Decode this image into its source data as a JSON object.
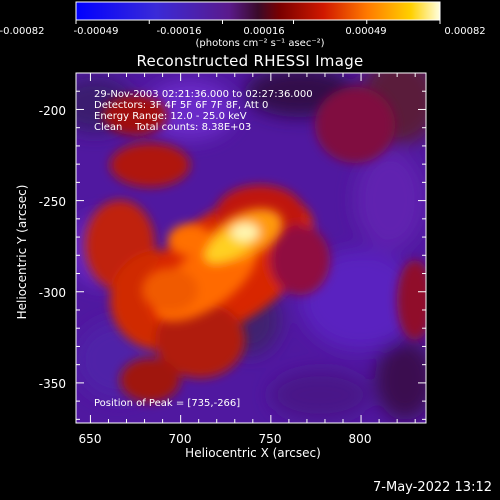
{
  "colorbar": {
    "tick_labels": [
      "-0.00082",
      "-0.00049",
      "-0.00016",
      "0.00016",
      "0.00049",
      "0.00082"
    ],
    "units_label": "(photons cm⁻² s⁻¹ asec⁻²)",
    "range": [
      -0.00082,
      0.00082
    ],
    "colormap": "blue-purple-red-orange-yellow-white"
  },
  "title": "Reconstructed RHESSI Image",
  "annotations": {
    "time_range": "29-Nov-2003 02:21:36.000 to 02:27:36.000",
    "detectors": "Detectors: 3F 4F 5F 6F 7F 8F, Att 0",
    "energy_range": "Energy Range: 12.0 - 25.0 keV",
    "method_counts": "Clean    Total counts: 8.38E+03",
    "peak": "Position of Peak = [735,-266]"
  },
  "axes": {
    "xlabel": "Heliocentric X (arcsec)",
    "ylabel": "Heliocentric Y (arcsec)",
    "xlim": [
      642,
      836
    ],
    "ylim": [
      -372,
      -180
    ],
    "xticks": [
      "650",
      "700",
      "750",
      "800"
    ],
    "yticks": [
      "-200",
      "-250",
      "-300",
      "-350"
    ],
    "peak_position": [
      735,
      -266
    ]
  },
  "footer": {
    "date": "7-May-2022 13:12"
  }
}
